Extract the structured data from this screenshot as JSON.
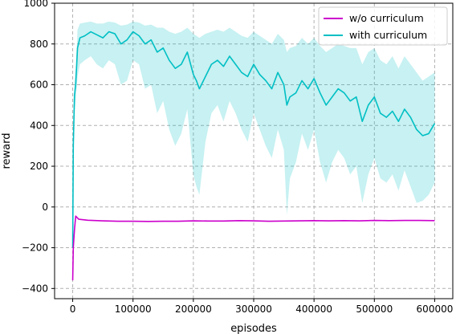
{
  "chart_data": {
    "type": "line",
    "xlabel": "episodes",
    "ylabel": "reward",
    "xlim": [
      -30000,
      630000
    ],
    "ylim": [
      -450,
      1000
    ],
    "xticks": [
      0,
      100000,
      200000,
      300000,
      400000,
      500000,
      600000
    ],
    "yticks": [
      -400,
      -200,
      0,
      200,
      400,
      600,
      800,
      1000
    ],
    "grid": true,
    "grid_style": "dashed",
    "legend_position": "top-right",
    "series": [
      {
        "name": "w/o curriculum",
        "color": "#cc00cc",
        "x": [
          0,
          1000,
          3000,
          5000,
          10000,
          25000,
          50000,
          75000,
          100000,
          125000,
          150000,
          175000,
          200000,
          225000,
          250000,
          275000,
          300000,
          325000,
          350000,
          375000,
          400000,
          425000,
          450000,
          475000,
          500000,
          525000,
          550000,
          575000,
          600000
        ],
        "y": [
          -360,
          -200,
          -110,
          -45,
          -60,
          -65,
          -68,
          -70,
          -70,
          -71,
          -70,
          -70,
          -68,
          -69,
          -69,
          -67,
          -68,
          -70,
          -69,
          -68,
          -67,
          -68,
          -67,
          -68,
          -66,
          -67,
          -66,
          -66,
          -67
        ]
      },
      {
        "name": "with curriculum",
        "color": "#00bfc4",
        "x": [
          0,
          1000,
          3000,
          5000,
          8000,
          12000,
          20000,
          30000,
          40000,
          50000,
          60000,
          70000,
          80000,
          90000,
          100000,
          110000,
          120000,
          130000,
          140000,
          150000,
          160000,
          170000,
          180000,
          190000,
          200000,
          205000,
          210000,
          220000,
          230000,
          240000,
          250000,
          260000,
          270000,
          280000,
          290000,
          300000,
          310000,
          320000,
          330000,
          340000,
          350000,
          355000,
          360000,
          370000,
          380000,
          390000,
          400000,
          410000,
          420000,
          430000,
          440000,
          450000,
          460000,
          470000,
          480000,
          490000,
          500000,
          510000,
          520000,
          530000,
          540000,
          550000,
          560000,
          570000,
          580000,
          590000,
          600000
        ],
        "y": [
          -200,
          300,
          550,
          600,
          780,
          830,
          840,
          860,
          845,
          830,
          860,
          850,
          800,
          820,
          860,
          840,
          800,
          820,
          760,
          780,
          720,
          680,
          700,
          760,
          650,
          620,
          580,
          640,
          700,
          720,
          690,
          740,
          700,
          660,
          640,
          700,
          650,
          620,
          580,
          660,
          600,
          500,
          540,
          560,
          620,
          580,
          630,
          560,
          500,
          540,
          580,
          560,
          520,
          540,
          420,
          500,
          540,
          460,
          440,
          470,
          420,
          480,
          440,
          380,
          350,
          360,
          410
        ]
      }
    ],
    "band": {
      "series": "with curriculum",
      "color": "#00bfc4",
      "opacity": 0.22,
      "upper": [
        -150,
        380,
        620,
        680,
        870,
        900,
        905,
        910,
        900,
        900,
        910,
        905,
        890,
        895,
        910,
        905,
        890,
        895,
        880,
        880,
        860,
        850,
        860,
        880,
        850,
        840,
        830,
        850,
        860,
        870,
        860,
        880,
        860,
        840,
        830,
        860,
        840,
        820,
        800,
        850,
        820,
        760,
        780,
        790,
        830,
        800,
        830,
        790,
        760,
        780,
        800,
        790,
        780,
        780,
        700,
        760,
        780,
        720,
        700,
        740,
        680,
        740,
        700,
        660,
        620,
        640,
        660
      ],
      "lower": [
        -250,
        200,
        460,
        520,
        640,
        700,
        720,
        740,
        700,
        680,
        720,
        700,
        600,
        620,
        720,
        700,
        580,
        600,
        460,
        520,
        380,
        300,
        360,
        480,
        160,
        100,
        60,
        320,
        460,
        500,
        420,
        520,
        460,
        380,
        320,
        460,
        380,
        300,
        240,
        380,
        280,
        -40,
        140,
        220,
        360,
        280,
        380,
        220,
        120,
        220,
        280,
        240,
        160,
        200,
        20,
        160,
        240,
        140,
        120,
        160,
        80,
        180,
        100,
        20,
        30,
        60,
        120
      ]
    }
  }
}
